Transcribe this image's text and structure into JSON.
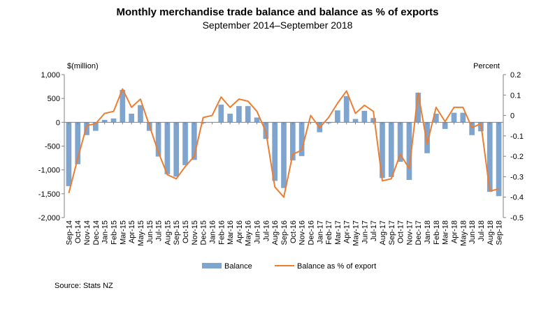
{
  "chart_data": {
    "type": "bar",
    "title": "Monthly merchandise trade balance and balance as % of exports",
    "subtitle": "September 2014–September 2018",
    "source": "Source: Stats NZ",
    "left_axis_label": "$(million)",
    "right_axis_label": "Percent",
    "y_left_lim": [
      -2000,
      1000
    ],
    "y_left_ticks": [
      "1,000",
      "500",
      "0",
      "-500",
      "-1,000",
      "-1,500",
      "-2,000"
    ],
    "y_right_lim": [
      -0.5,
      0.2
    ],
    "y_right_ticks": [
      "0.2",
      "0.1",
      "0",
      "-0.1",
      "-0.2",
      "-0.3",
      "-0.4",
      "-0.5"
    ],
    "categories": [
      "Sep-14",
      "Oct-14",
      "Nov-14",
      "Dec-14",
      "Jan-15",
      "Feb-15",
      "Mar-15",
      "Apr-15",
      "May-15",
      "Jun-15",
      "Jul-15",
      "Aug-15",
      "Sep-15",
      "Oct-15",
      "Nov-15",
      "Dec-15",
      "Jan-16",
      "Feb-16",
      "Mar-16",
      "Apr-16",
      "May-16",
      "Jun-16",
      "Jul-16",
      "Aug-16",
      "Sep-16",
      "Oct-16",
      "Nov-16",
      "Dec-16",
      "Jan-17",
      "Feb-17",
      "Mar-17",
      "Apr-17",
      "May-17",
      "Jun-17",
      "Jul-17",
      "Aug-17",
      "Sep-17",
      "Oct-17",
      "Nov-17",
      "Dec-17",
      "Jan-18",
      "Feb-18",
      "Mar-18",
      "Apr-18",
      "May-18",
      "Jun-18",
      "Jul-18",
      "Aug-18",
      "Sep-18"
    ],
    "category_labels": [
      "Sep-14",
      "Oct-14",
      "Nov-14",
      "Dec-14",
      "Jan-15",
      "Feb-15",
      "Mar-15",
      "Apr-15",
      "May-15",
      "Jun-15",
      "Jul-15",
      "Aug-15",
      "Sep-15",
      "Oct-15",
      "Nov-15",
      "Dec-15",
      "Jan-16",
      "Feb-16",
      "Mar-16",
      "Apr-16",
      "May-16",
      "Jun-16",
      "Jul-16",
      "Aug-16",
      "Sep-16",
      "Oct-16",
      "Nov-16",
      "Dec-16",
      "Jan-17",
      "Feb-17",
      "Mar-17",
      "Apr-17",
      "May-17",
      "Jun-17",
      "Jul-17",
      "Aug-17",
      "Sep-17",
      "Oct-17",
      "Nov-17",
      "Dec-17",
      "Jan-18",
      "Feb-18",
      "Mar-18",
      "Apr-18",
      "May-18",
      "Jun-18",
      "Jul-18",
      "Aug-18",
      "Sep-18"
    ],
    "series": [
      {
        "name": "Balance",
        "type": "bar",
        "axis": "left",
        "color": "#7FA5CF",
        "values": [
          -1340,
          -880,
          -270,
          -180,
          50,
          80,
          680,
          180,
          360,
          -180,
          -720,
          -1090,
          -1140,
          -900,
          -790,
          -20,
          0,
          370,
          180,
          340,
          340,
          100,
          -350,
          -1230,
          -1380,
          -800,
          -710,
          0,
          -210,
          -20,
          250,
          550,
          70,
          240,
          90,
          -1170,
          -1150,
          -830,
          -1210,
          620,
          -650,
          180,
          -140,
          200,
          200,
          -270,
          -190,
          -1460,
          -1550
        ]
      },
      {
        "name": "Balance as % of export",
        "type": "line",
        "axis": "right",
        "color": "#ED7D31",
        "values": [
          -0.38,
          -0.21,
          -0.05,
          -0.04,
          0.01,
          0.02,
          0.13,
          0.04,
          0.08,
          -0.05,
          -0.18,
          -0.29,
          -0.31,
          -0.25,
          -0.2,
          -0.01,
          0.0,
          0.09,
          0.04,
          0.08,
          0.07,
          0.02,
          -0.08,
          -0.35,
          -0.4,
          -0.19,
          -0.17,
          0.0,
          -0.06,
          -0.01,
          0.06,
          0.12,
          0.01,
          0.05,
          0.02,
          -0.32,
          -0.31,
          -0.19,
          -0.26,
          0.11,
          -0.14,
          0.04,
          -0.03,
          0.04,
          0.04,
          -0.06,
          -0.04,
          -0.37,
          -0.36
        ]
      }
    ],
    "grid": false,
    "legend_position": "bottom"
  }
}
